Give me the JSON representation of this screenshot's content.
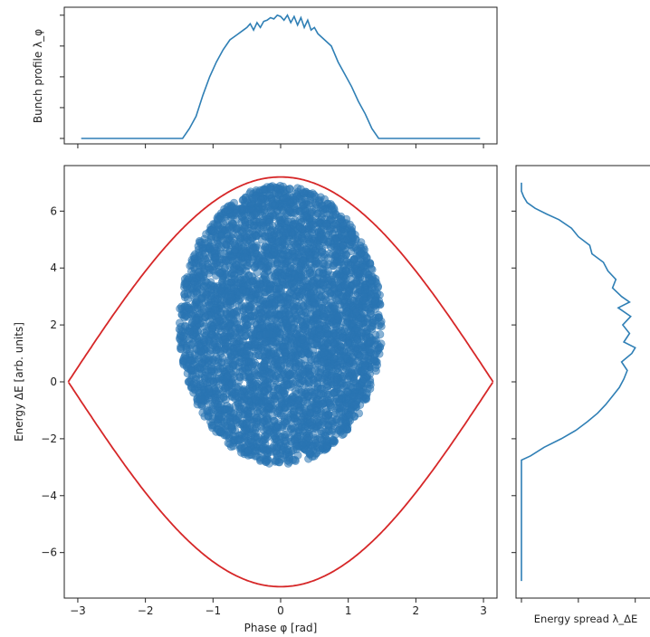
{
  "figure": {
    "width": 718,
    "height": 704
  },
  "colors": {
    "profile_line": "#2f7fb5",
    "scatter_fill": "#2a75b3",
    "separatrix": "#d62728",
    "axes": "#222222"
  },
  "labels": {
    "top_ylabel": "Bunch profile λ_φ",
    "main_xlabel": "Phase φ [rad]",
    "main_ylabel": "Energy ΔE [arb. units]",
    "right_xlabel": "Energy spread λ_ΔE"
  },
  "chart_data": [
    {
      "name": "bunch-profile",
      "type": "line",
      "xlim": [
        -3.2,
        3.2
      ],
      "ylim": [
        0,
        1.05
      ],
      "x_ticks_shown": false,
      "y_ticks_shown": false,
      "x": [
        -2.95,
        -1.45,
        -1.35,
        -1.25,
        -1.15,
        -1.05,
        -0.95,
        -0.85,
        -0.75,
        -0.65,
        -0.55,
        -0.5,
        -0.45,
        -0.4,
        -0.35,
        -0.3,
        -0.25,
        -0.2,
        -0.15,
        -0.1,
        -0.05,
        0.0,
        0.05,
        0.1,
        0.15,
        0.2,
        0.25,
        0.3,
        0.35,
        0.4,
        0.45,
        0.5,
        0.55,
        0.65,
        0.75,
        0.85,
        0.95,
        1.05,
        1.15,
        1.25,
        1.35,
        1.45,
        2.95
      ],
      "y": [
        0.0,
        0.0,
        0.08,
        0.18,
        0.35,
        0.5,
        0.62,
        0.72,
        0.8,
        0.84,
        0.88,
        0.9,
        0.93,
        0.88,
        0.94,
        0.9,
        0.95,
        0.96,
        0.98,
        0.97,
        1.0,
        0.99,
        0.96,
        1.0,
        0.94,
        0.99,
        0.92,
        0.98,
        0.9,
        0.96,
        0.88,
        0.9,
        0.85,
        0.8,
        0.75,
        0.62,
        0.52,
        0.42,
        0.3,
        0.2,
        0.08,
        0.0,
        0.0
      ]
    },
    {
      "name": "phase-space",
      "type": "scatter",
      "xlim": [
        -3.2,
        3.2
      ],
      "ylim": [
        -7.6,
        7.6
      ],
      "xlabel": "Phase φ [rad]",
      "ylabel": "Energy ΔE [arb. units]",
      "xticks": [
        -3,
        -2,
        -1,
        0,
        1,
        2,
        3
      ],
      "yticks": [
        -6,
        -4,
        -2,
        0,
        2,
        4,
        6
      ],
      "separatrix": {
        "amplitude": 7.2,
        "half_width": 3.14159
      },
      "bunch": {
        "center_x": 0.0,
        "center_y": 2.0,
        "radius_x": 1.5,
        "radius_y": 4.9,
        "point_count": 4500
      }
    },
    {
      "name": "energy-spread",
      "type": "line",
      "ylim": [
        -7.6,
        7.6
      ],
      "xlim": [
        0,
        1.05
      ],
      "x_ticks_shown": false,
      "y_ticks_shown": false,
      "energy": [
        -7.0,
        -2.75,
        -2.6,
        -2.3,
        -2.0,
        -1.7,
        -1.4,
        -1.1,
        -0.8,
        -0.5,
        -0.2,
        0.1,
        0.4,
        0.7,
        1.0,
        1.2,
        1.4,
        1.7,
        2.0,
        2.3,
        2.6,
        2.8,
        3.0,
        3.3,
        3.6,
        3.9,
        4.2,
        4.5,
        4.8,
        5.1,
        5.4,
        5.7,
        5.9,
        6.1,
        6.3,
        6.5,
        6.7,
        7.0
      ],
      "density": [
        0.0,
        0.0,
        0.08,
        0.2,
        0.35,
        0.48,
        0.58,
        0.67,
        0.74,
        0.8,
        0.86,
        0.9,
        0.93,
        0.88,
        0.97,
        1.0,
        0.9,
        0.95,
        0.89,
        0.96,
        0.85,
        0.95,
        0.88,
        0.8,
        0.83,
        0.76,
        0.72,
        0.62,
        0.6,
        0.5,
        0.44,
        0.33,
        0.22,
        0.12,
        0.05,
        0.02,
        0.0,
        0.0
      ]
    }
  ]
}
